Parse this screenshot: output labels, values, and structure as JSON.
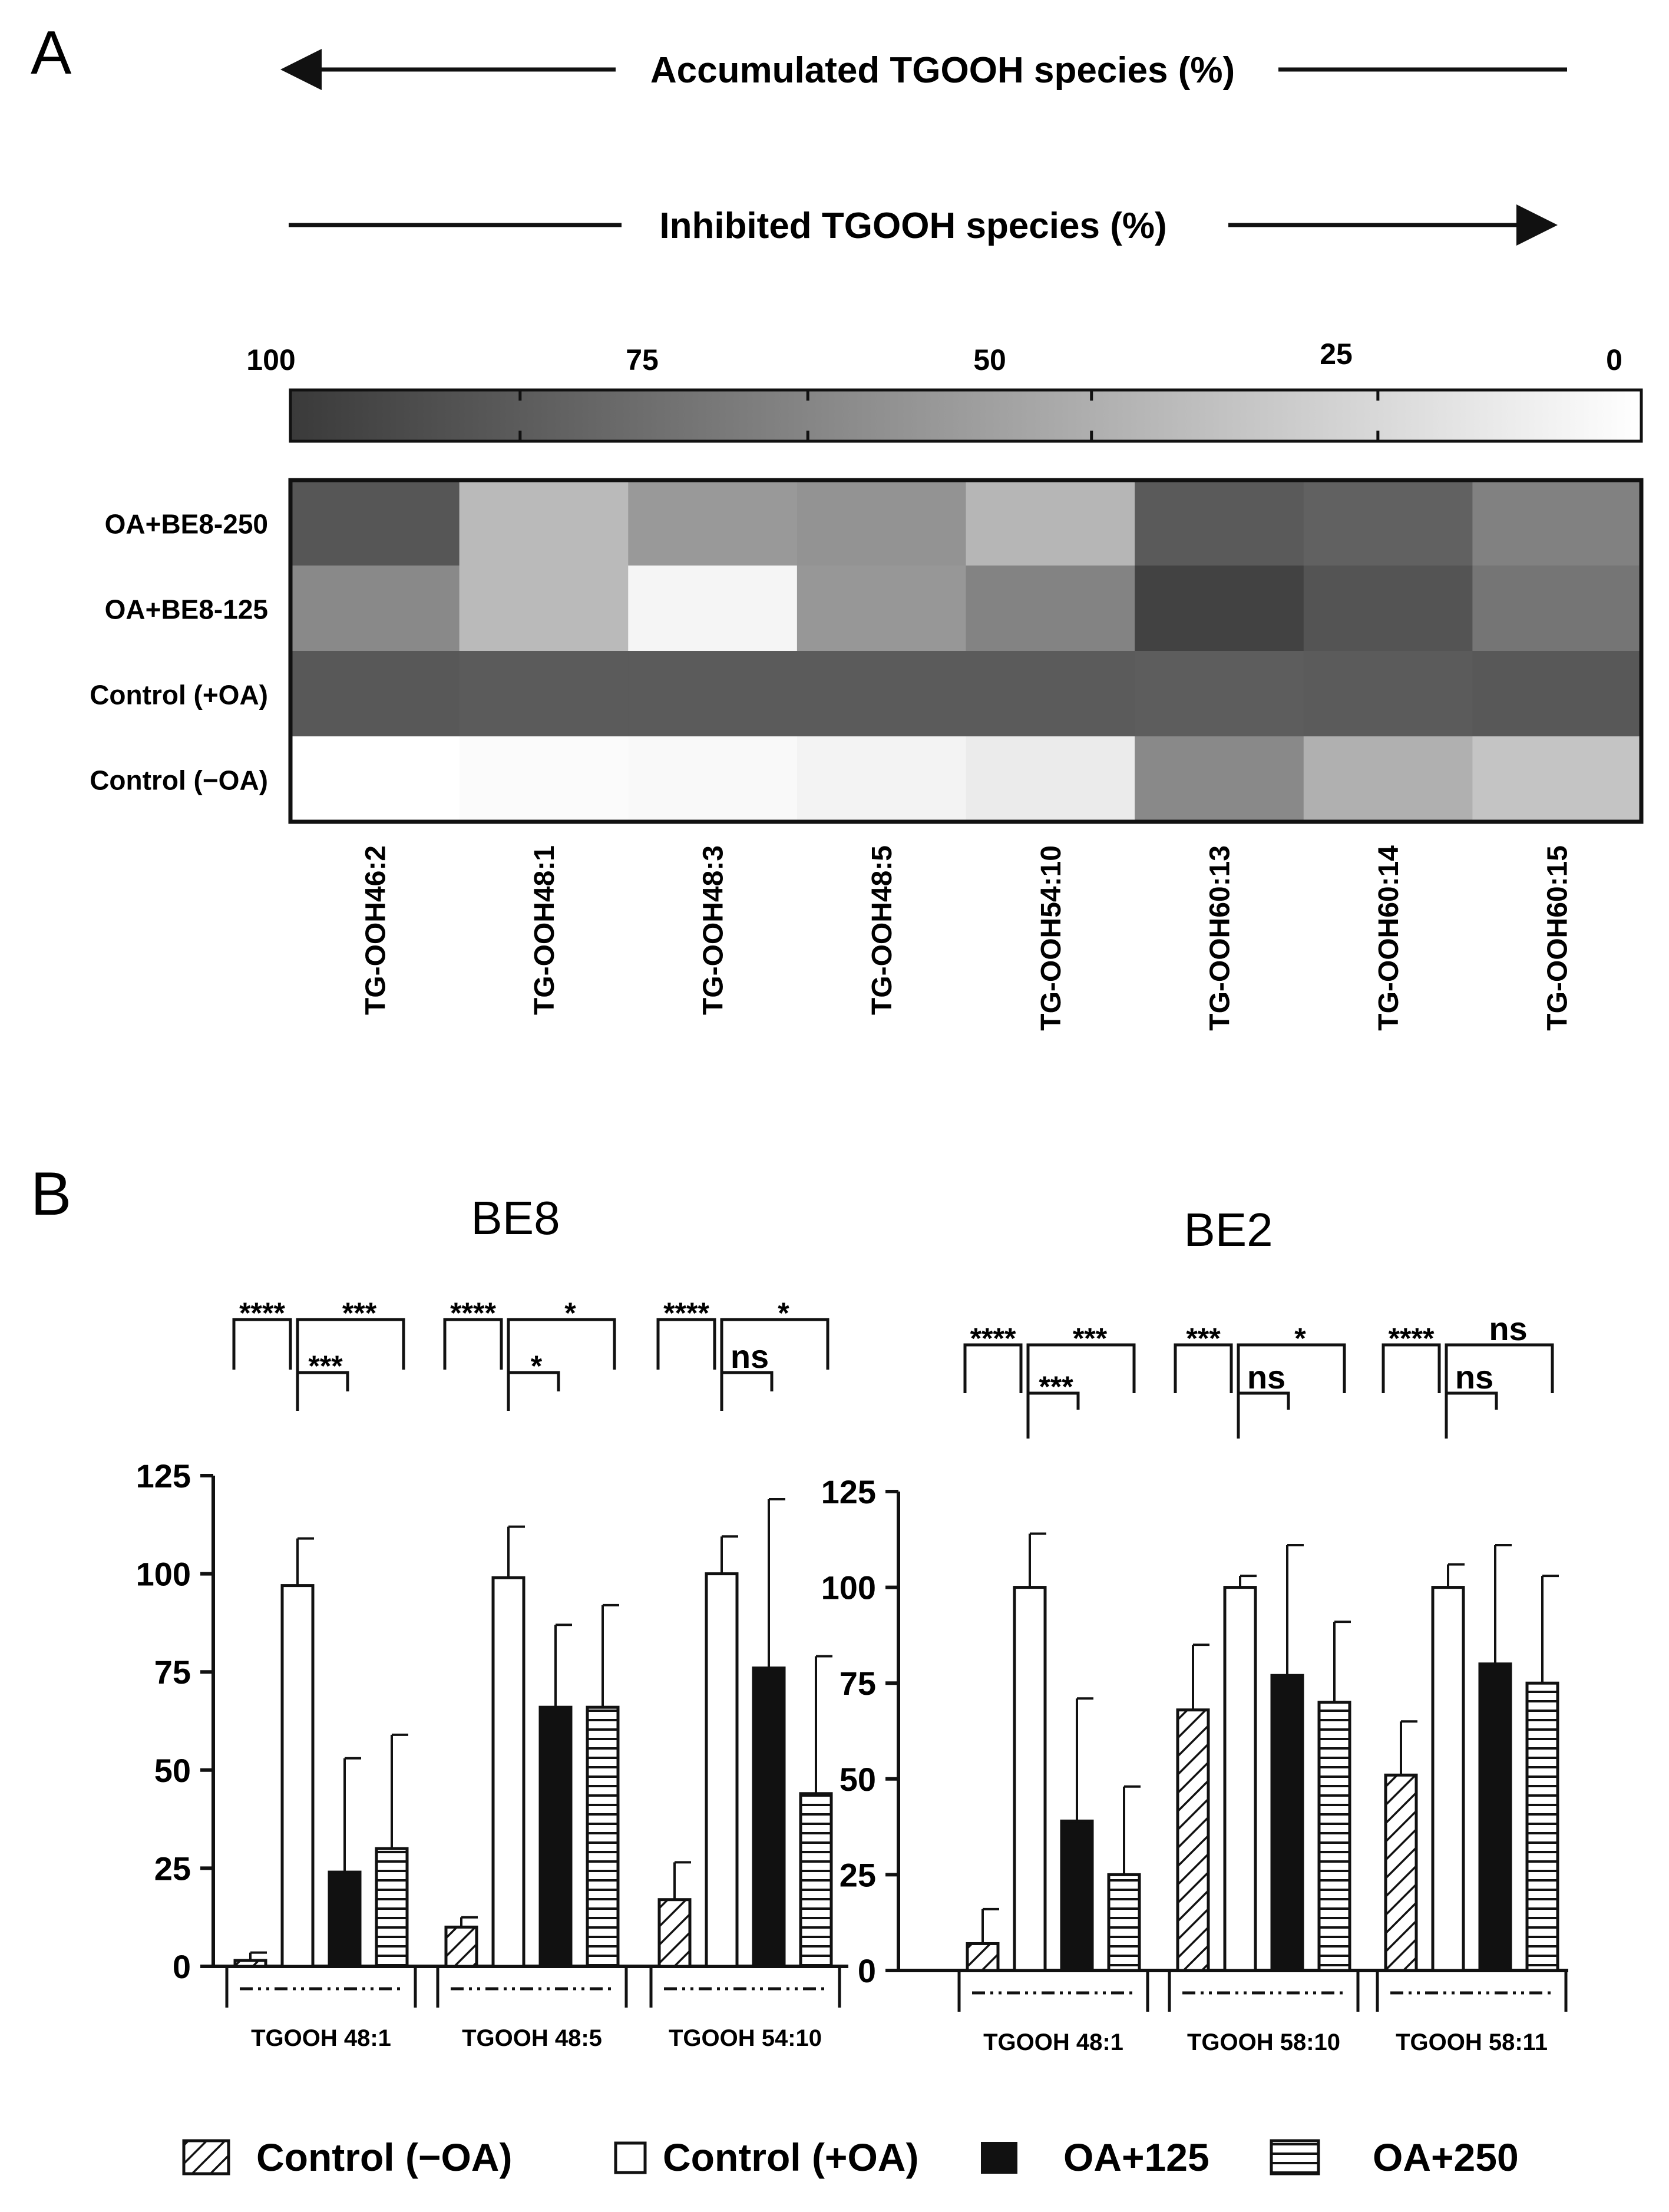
{
  "panel_labels": {
    "a": "A",
    "b": "B"
  },
  "arrows": {
    "accumulated": "Accumulated TGOOH species (%)",
    "inhibited": "Inhibited TGOOH species (%)"
  },
  "chart_data": [
    {
      "type": "heatmap",
      "panel": "A",
      "scale_ticks": [
        "100",
        "75",
        "50",
        "25",
        "0"
      ],
      "scale_range": [
        0,
        100
      ],
      "rows": [
        "OA+BE8-250",
        "OA+BE8-125",
        "Control (+OA)",
        "Control (−OA)"
      ],
      "columns": [
        "TG-OOH46:2",
        "TG-OOH48:1",
        "TG-OOH48:3",
        "TG-OOH48:5",
        "TG-OOH54:10",
        "TG-OOH60:13",
        "TG-OOH60:14",
        "TG-OOH60:15"
      ],
      "values": [
        [
          86,
          35,
          52,
          55,
          37,
          84,
          80,
          64
        ],
        [
          60,
          35,
          5,
          53,
          63,
          96,
          87,
          70
        ],
        [
          85,
          83,
          83,
          83,
          83,
          82,
          83,
          85
        ],
        [
          0,
          2,
          3,
          6,
          10,
          60,
          40,
          30
        ]
      ]
    },
    {
      "type": "bar",
      "panel": "B",
      "title": "BE8",
      "ylim": [
        0,
        125
      ],
      "yticks": [
        "0",
        "25",
        "50",
        "75",
        "100",
        "125"
      ],
      "categories": [
        "TGOOH 48:1",
        "TGOOH 48:5",
        "TGOOH 54:10"
      ],
      "series": [
        {
          "name": "Control (−OA)",
          "values": [
            1.5,
            10,
            17
          ],
          "errors": [
            2,
            2.5,
            9.5
          ]
        },
        {
          "name": "Control (+OA)",
          "values": [
            97,
            99,
            100
          ],
          "errors": [
            12,
            13,
            9.5
          ]
        },
        {
          "name": "OA+125",
          "values": [
            24,
            66,
            76
          ],
          "errors": [
            29,
            21,
            43
          ]
        },
        {
          "name": "OA+250",
          "values": [
            30,
            66,
            44
          ],
          "errors": [
            29,
            26,
            35
          ]
        }
      ],
      "significance": [
        {
          "pair": "-OA vs +OA",
          "labels": [
            "****",
            "****",
            "****"
          ]
        },
        {
          "pair": "+OA vs OA+250",
          "labels": [
            "***",
            "*",
            "*"
          ]
        },
        {
          "pair": "+OA vs OA+125",
          "labels": [
            "***",
            "*",
            "ns"
          ]
        }
      ]
    },
    {
      "type": "bar",
      "panel": "B",
      "title": "BE2",
      "ylim": [
        0,
        125
      ],
      "yticks": [
        "0",
        "25",
        "50",
        "75",
        "100",
        "125"
      ],
      "categories": [
        "TGOOH 48:1",
        "TGOOH 58:10",
        "TGOOH 58:11"
      ],
      "series": [
        {
          "name": "Control (−OA)",
          "values": [
            7,
            68,
            51
          ],
          "errors": [
            9,
            17,
            14
          ]
        },
        {
          "name": "Control (+OA)",
          "values": [
            100,
            100,
            100
          ],
          "errors": [
            14,
            3,
            6
          ]
        },
        {
          "name": "OA+125",
          "values": [
            39,
            77,
            80
          ],
          "errors": [
            32,
            34,
            31
          ]
        },
        {
          "name": "OA+250",
          "values": [
            25,
            70,
            75
          ],
          "errors": [
            23,
            21,
            28
          ]
        }
      ],
      "significance": [
        {
          "pair": "-OA vs +OA",
          "labels": [
            "****",
            "***",
            "****"
          ]
        },
        {
          "pair": "+OA vs OA+250",
          "labels": [
            "***",
            "*",
            "ns"
          ]
        },
        {
          "pair": "+OA vs OA+125",
          "labels": [
            "***",
            "ns",
            "ns"
          ]
        }
      ]
    }
  ],
  "legend": [
    "Control (−OA)",
    "Control (+OA)",
    "OA+125",
    "OA+250"
  ],
  "colors": {
    "ink": "#111111",
    "white": "#ffffff"
  }
}
